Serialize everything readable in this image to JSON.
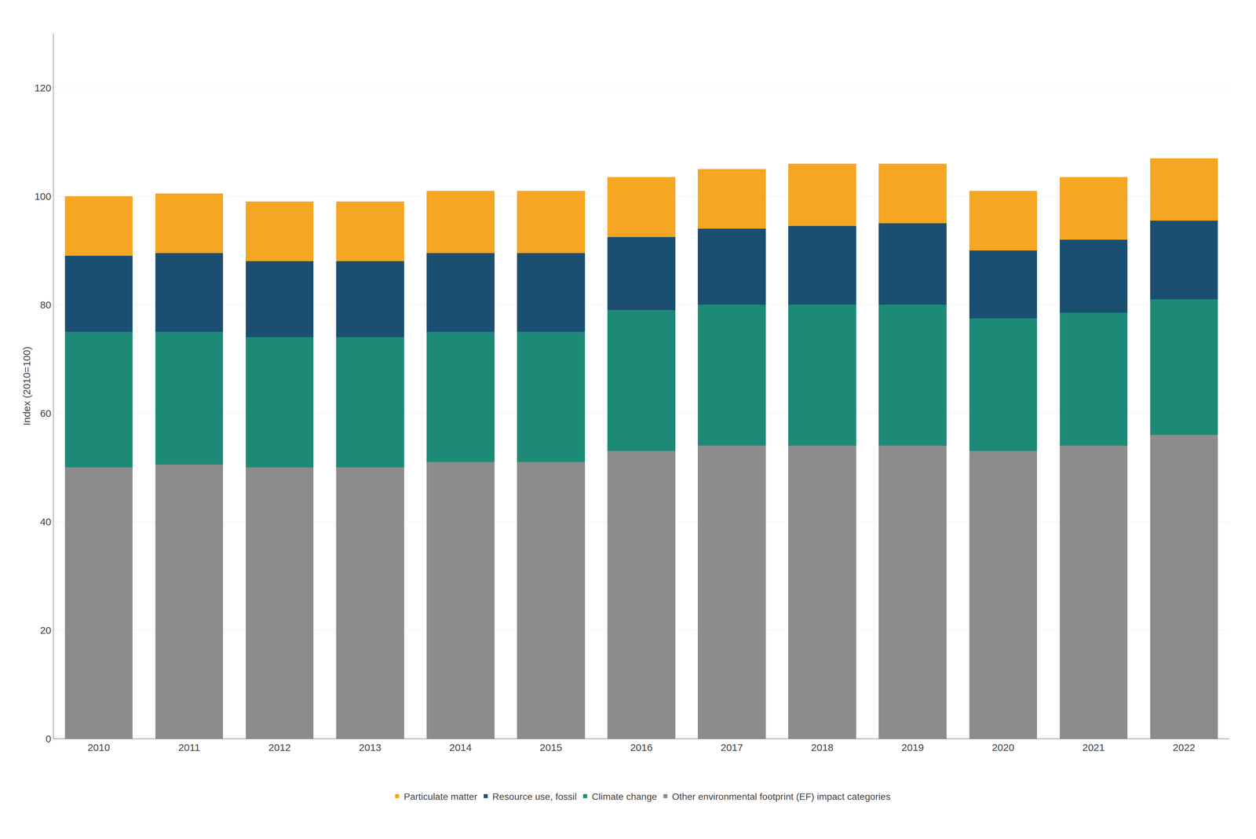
{
  "chart_data": {
    "type": "bar",
    "stacked": true,
    "y_label": "Index (2010=100)",
    "categories": [
      2010,
      2011,
      2012,
      2013,
      2014,
      2015,
      2016,
      2017,
      2018,
      2019,
      2020,
      2021,
      2022
    ],
    "series": [
      {
        "name": "Other environmental footprint (EF) impact categories",
        "color": "#8c8c8c",
        "values": [
          50.0,
          50.5,
          50.0,
          50.0,
          51.0,
          51.0,
          53.0,
          54.0,
          54.0,
          54.0,
          53.0,
          54.0,
          56.0
        ]
      },
      {
        "name": "Climate change",
        "color": "#1d8a78",
        "values": [
          25.0,
          24.5,
          24.0,
          24.0,
          24.0,
          24.0,
          26.0,
          26.0,
          26.0,
          26.0,
          24.5,
          24.5,
          25.0
        ]
      },
      {
        "name": "Resource use, fossil",
        "color": "#1b4f72",
        "values": [
          14.0,
          14.5,
          14.0,
          14.0,
          14.5,
          14.5,
          13.5,
          14.0,
          14.5,
          15.0,
          12.5,
          13.5,
          14.5
        ]
      },
      {
        "name": "Particulate matter",
        "color": "#f5a623",
        "values": [
          11.0,
          11.0,
          11.0,
          11.0,
          11.5,
          11.5,
          11.0,
          11.0,
          11.5,
          11.0,
          11.0,
          11.5,
          11.5
        ]
      }
    ],
    "ylim": [
      0,
      130
    ],
    "yticks": [
      0,
      20,
      40,
      60,
      80,
      100,
      120
    ],
    "grid": true,
    "legend": "bottom"
  }
}
